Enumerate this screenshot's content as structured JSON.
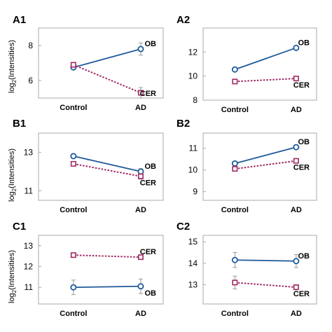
{
  "figure": {
    "ylabel_main": "log",
    "ylabel_sub": "2",
    "ylabel_tail": "(Intensities)"
  },
  "colors": {
    "OB": "#1f5a9c",
    "CER": "#a02a63",
    "error": "#999999"
  },
  "chart_data": [
    {
      "label": "A1",
      "type": "line",
      "categories": [
        "Control",
        "AD"
      ],
      "ylim": [
        5,
        9
      ],
      "yticks": [
        "6",
        "8"
      ],
      "series": [
        {
          "name": "OB",
          "values": [
            6.75,
            7.8
          ],
          "errors": [
            0.1,
            0.35
          ],
          "style": "solid-circle"
        },
        {
          "name": "CER",
          "values": [
            6.9,
            5.3
          ],
          "errors": [
            0.1,
            0.3
          ],
          "style": "dotted-square"
        }
      ]
    },
    {
      "label": "A2",
      "type": "line",
      "categories": [
        "Control",
        "AD"
      ],
      "ylim": [
        8,
        14
      ],
      "yticks": [
        "8",
        "10",
        "12"
      ],
      "series": [
        {
          "name": "OB",
          "values": [
            10.55,
            12.35
          ],
          "errors": [
            0,
            0
          ],
          "style": "solid-circle"
        },
        {
          "name": "CER",
          "values": [
            9.55,
            9.8
          ],
          "errors": [
            0,
            0
          ],
          "style": "dotted-square"
        }
      ]
    },
    {
      "label": "B1",
      "type": "line",
      "categories": [
        "Control",
        "AD"
      ],
      "ylim": [
        10.5,
        14
      ],
      "yticks": [
        "11",
        "13"
      ],
      "series": [
        {
          "name": "OB",
          "values": [
            12.8,
            12.0
          ],
          "errors": [
            0,
            0.15
          ],
          "style": "solid-circle"
        },
        {
          "name": "CER",
          "values": [
            12.4,
            11.75
          ],
          "errors": [
            0,
            0.15
          ],
          "style": "dotted-square"
        }
      ]
    },
    {
      "label": "B2",
      "type": "line",
      "categories": [
        "Control",
        "AD"
      ],
      "ylim": [
        8.6,
        11.7
      ],
      "yticks": [
        "9",
        "10",
        "11"
      ],
      "series": [
        {
          "name": "OB",
          "values": [
            10.3,
            11.05
          ],
          "errors": [
            0,
            0
          ],
          "style": "solid-circle"
        },
        {
          "name": "CER",
          "values": [
            10.05,
            10.42
          ],
          "errors": [
            0,
            0
          ],
          "style": "dotted-square"
        }
      ]
    },
    {
      "label": "C1",
      "type": "line",
      "categories": [
        "Control",
        "AD"
      ],
      "ylim": [
        10.2,
        13.5
      ],
      "yticks": [
        "11",
        "12",
        "13"
      ],
      "series": [
        {
          "name": "OB",
          "values": [
            11.0,
            11.05
          ],
          "errors": [
            0.35,
            0.35
          ],
          "style": "solid-circle"
        },
        {
          "name": "CER",
          "values": [
            12.55,
            12.45
          ],
          "errors": [
            0,
            0
          ],
          "style": "dotted-square"
        }
      ]
    },
    {
      "label": "C2",
      "type": "line",
      "categories": [
        "Control",
        "AD"
      ],
      "ylim": [
        12.1,
        15.3
      ],
      "yticks": [
        "13",
        "14",
        "15"
      ],
      "series": [
        {
          "name": "OB",
          "values": [
            14.15,
            14.1
          ],
          "errors": [
            0.35,
            0.3
          ],
          "style": "solid-circle"
        },
        {
          "name": "CER",
          "values": [
            13.1,
            12.88
          ],
          "errors": [
            0.3,
            0.12
          ],
          "style": "dotted-square"
        }
      ]
    }
  ]
}
